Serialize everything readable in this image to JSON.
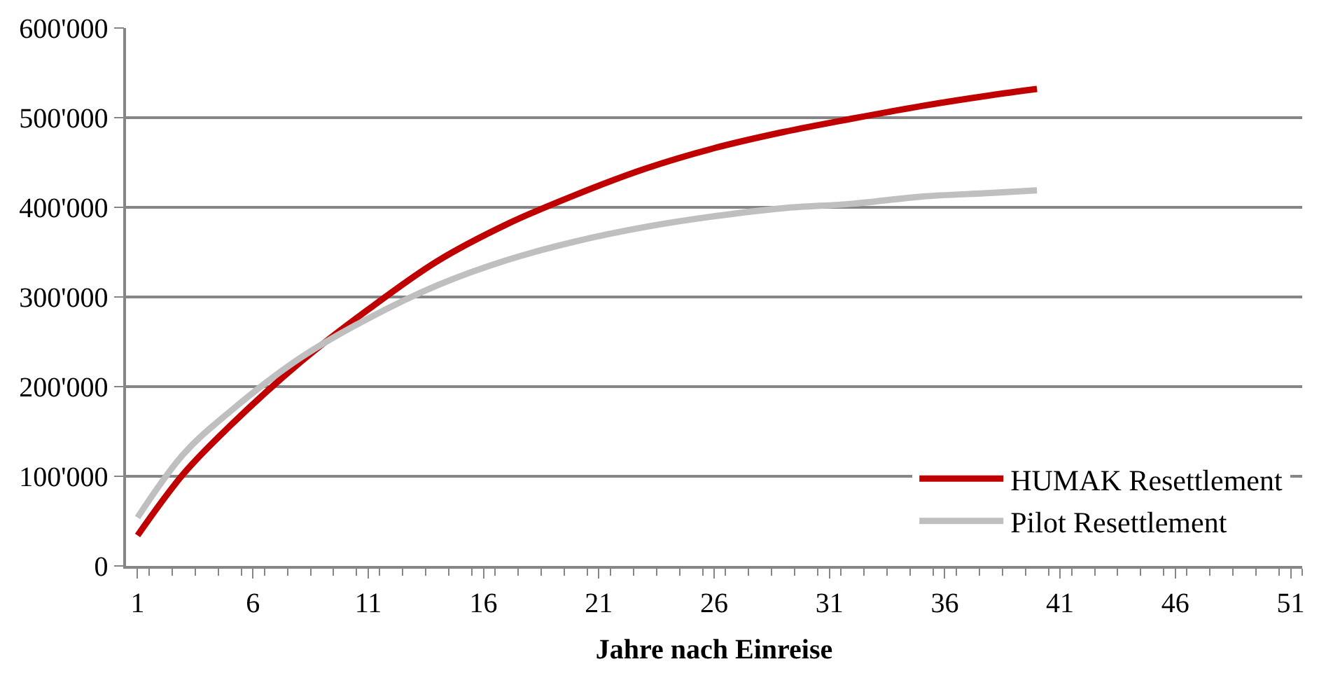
{
  "chart_data": {
    "type": "line",
    "xlabel": "Jahre nach Einreise",
    "x": [
      1,
      3,
      5,
      8,
      11,
      14,
      17,
      20,
      23,
      26,
      29,
      32,
      35,
      38,
      40
    ],
    "series": [
      {
        "name": "HUMAK Resettlement",
        "color": "#c00000",
        "values": [
          34000,
          103000,
          156000,
          226000,
          286000,
          340000,
          381000,
          414000,
          443000,
          466000,
          484000,
          499000,
          513000,
          525000,
          532000
        ]
      },
      {
        "name": "Pilot Resettlement",
        "color": "#bfbfbf",
        "values": [
          54000,
          125000,
          172000,
          231000,
          276000,
          313000,
          341000,
          362000,
          378000,
          390000,
          399000,
          404000,
          412000,
          416000,
          419000
        ]
      }
    ],
    "xlim": [
      0.5,
      51.5
    ],
    "xticks": [
      1,
      6,
      11,
      16,
      21,
      26,
      31,
      36,
      41,
      46,
      51,
      {
        "value": 1.5,
        "label": null
      },
      {
        "value": 2.5,
        "label": null
      },
      {
        "value": 3.5,
        "label": null
      },
      {
        "value": 4.5,
        "label": null
      },
      {
        "value": 5.5,
        "label": null
      },
      {
        "value": 6.5,
        "label": null
      },
      {
        "value": 7.5,
        "label": null
      },
      {
        "value": 8.5,
        "label": null
      },
      {
        "value": 9.5,
        "label": null
      },
      {
        "value": 10.5,
        "label": null
      },
      {
        "value": 11.5,
        "label": null
      },
      {
        "value": 12.5,
        "label": null
      },
      {
        "value": 13.5,
        "label": null
      },
      {
        "value": 14.5,
        "label": null
      },
      {
        "value": 15.5,
        "label": null
      },
      {
        "value": 16.5,
        "label": null
      },
      {
        "value": 17.5,
        "label": null
      },
      {
        "value": 18.5,
        "label": null
      },
      {
        "value": 19.5,
        "label": null
      },
      {
        "value": 20.5,
        "label": null
      },
      {
        "value": 21.5,
        "label": null
      },
      {
        "value": 22.5,
        "label": null
      },
      {
        "value": 23.5,
        "label": null
      },
      {
        "value": 24.5,
        "label": null
      },
      {
        "value": 25.5,
        "label": null
      },
      {
        "value": 26.5,
        "label": null
      },
      {
        "value": 27.5,
        "label": null
      },
      {
        "value": 28.5,
        "label": null
      },
      {
        "value": 29.5,
        "label": null
      },
      {
        "value": 30.5,
        "label": null
      },
      {
        "value": 31.5,
        "label": null
      },
      {
        "value": 32.5,
        "label": null
      },
      {
        "value": 33.5,
        "label": null
      },
      {
        "value": 34.5,
        "label": null
      },
      {
        "value": 35.5,
        "label": null
      },
      {
        "value": 36.5,
        "label": null
      },
      {
        "value": 37.5,
        "label": null
      },
      {
        "value": 38.5,
        "label": null
      },
      {
        "value": 39.5,
        "label": null
      },
      {
        "value": 40.5,
        "label": null
      },
      {
        "value": 41.5,
        "label": null
      },
      {
        "value": 42.5,
        "label": null
      },
      {
        "value": 43.5,
        "label": null
      },
      {
        "value": 44.5,
        "label": null
      },
      {
        "value": 45.5,
        "label": null
      },
      {
        "value": 46.5,
        "label": null
      },
      {
        "value": 47.5,
        "label": null
      },
      {
        "value": 48.5,
        "label": null
      },
      {
        "value": 49.5,
        "label": null
      },
      {
        "value": 50.5,
        "label": null
      },
      {
        "value": 51.5,
        "label": null
      }
    ],
    "ylim": [
      0,
      600000
    ],
    "yticks": [
      0,
      {
        "value": 100000,
        "label": "100'000"
      },
      {
        "value": 200000,
        "label": "200'000"
      },
      {
        "value": 300000,
        "label": "300'000"
      },
      {
        "value": 400000,
        "label": "400'000"
      },
      {
        "value": 500000,
        "label": "500'000"
      },
      {
        "value": 600000,
        "label": "600'000"
      }
    ],
    "grid": "y",
    "legend": "bottom right",
    "marker": "none",
    "line_style": "solid"
  }
}
